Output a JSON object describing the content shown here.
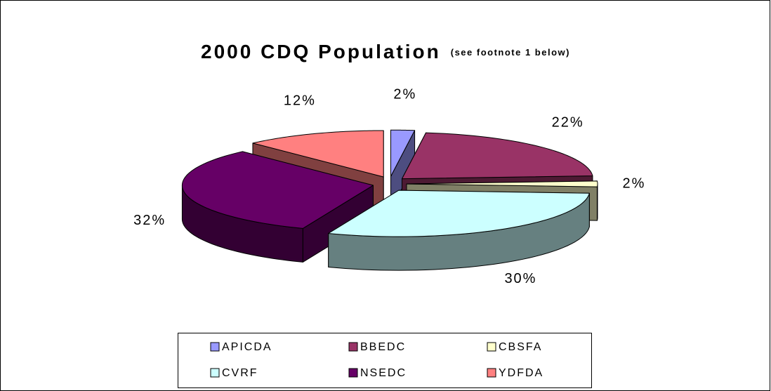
{
  "chart_data": {
    "type": "pie3d",
    "title": "2000 CDQ Population",
    "subtitle": "(see footnote 1 below)",
    "categories": [
      "APICDA",
      "BBEDC",
      "CBSFA",
      "CVRF",
      "NSEDC",
      "YDFDA"
    ],
    "values": [
      2,
      22,
      2,
      30,
      32,
      12
    ],
    "value_labels": [
      "2%",
      "22%",
      "2%",
      "30%",
      "32%",
      "12%"
    ],
    "colors": [
      "#9999ff",
      "#993366",
      "#ffffcc",
      "#ccffff",
      "#660066",
      "#ff8080"
    ],
    "legend": "bottom"
  }
}
